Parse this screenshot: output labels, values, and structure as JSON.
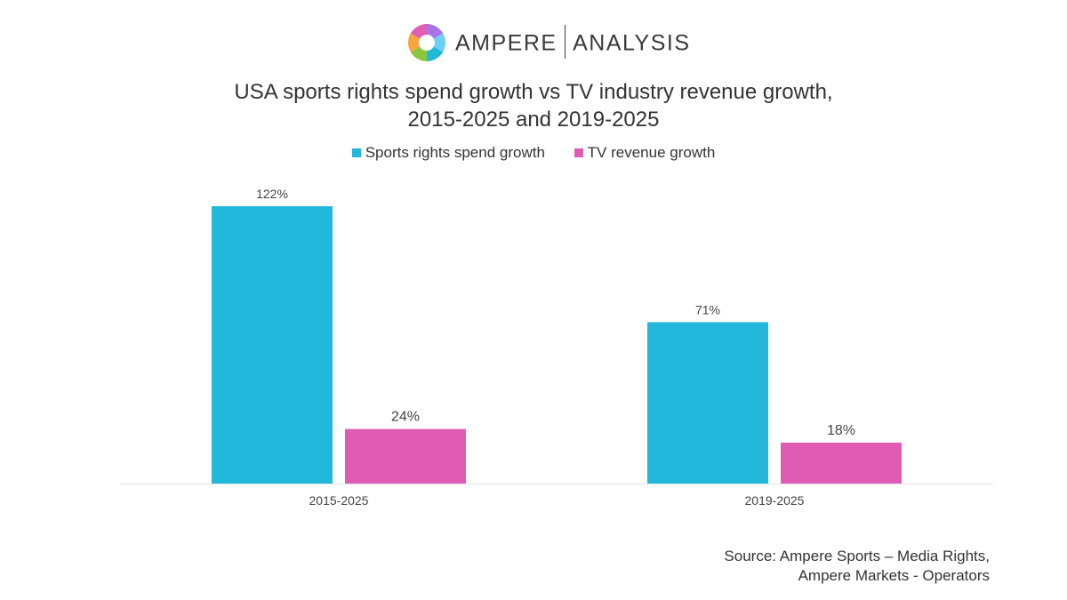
{
  "logo": {
    "brand_primary": "AMPERE",
    "brand_secondary": "ANALYSIS",
    "icon": "ampere-ring-logo",
    "ring_colors": [
      "#a974e8",
      "#6dcff6",
      "#22b8d8",
      "#8cc63f",
      "#f7a541",
      "#e05fb4"
    ]
  },
  "title_line1": "USA sports rights spend growth vs TV industry revenue growth,",
  "title_line2": "2015-2025 and 2019-2025",
  "source_line1": "Source: Ampere Sports – Media Rights,",
  "source_line2": "Ampere Markets - Operators",
  "chart_data": {
    "type": "bar",
    "categories": [
      "2015-2025",
      "2019-2025"
    ],
    "series": [
      {
        "name": "Sports rights spend growth",
        "values": [
          122,
          71
        ],
        "labels": [
          "122%",
          "71%"
        ],
        "color": "#22b8db"
      },
      {
        "name": "TV revenue growth",
        "values": [
          24,
          18
        ],
        "labels": [
          "24%",
          "18%"
        ],
        "color": "#e05bb3"
      }
    ],
    "ylim": [
      0,
      122
    ],
    "grid": false,
    "legend_position": "top"
  }
}
